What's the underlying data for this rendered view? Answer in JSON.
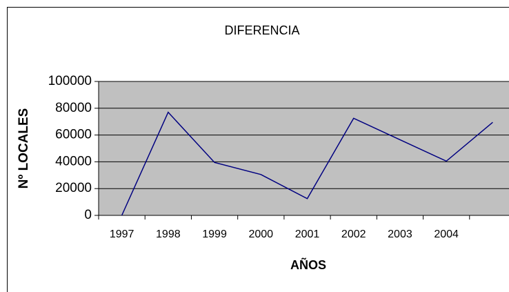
{
  "chart_data": {
    "type": "line",
    "title": "DIFERENCIA",
    "x_label": "AÑOS",
    "y_label": "Nº LOCALES",
    "categories": [
      "1997",
      "1998",
      "1999",
      "2000",
      "2001",
      "2002",
      "2003",
      "2004",
      null
    ],
    "series": [
      {
        "name": null,
        "color": "#000080",
        "values": [
          0,
          77000,
          39500,
          30500,
          12500,
          72500,
          56500,
          40500,
          69500
        ]
      }
    ],
    "ylim": [
      0,
      100000
    ],
    "yticks": [
      0,
      20000,
      40000,
      60000,
      80000,
      100000
    ],
    "grid": true,
    "plot_background": "#c0c0c0"
  }
}
